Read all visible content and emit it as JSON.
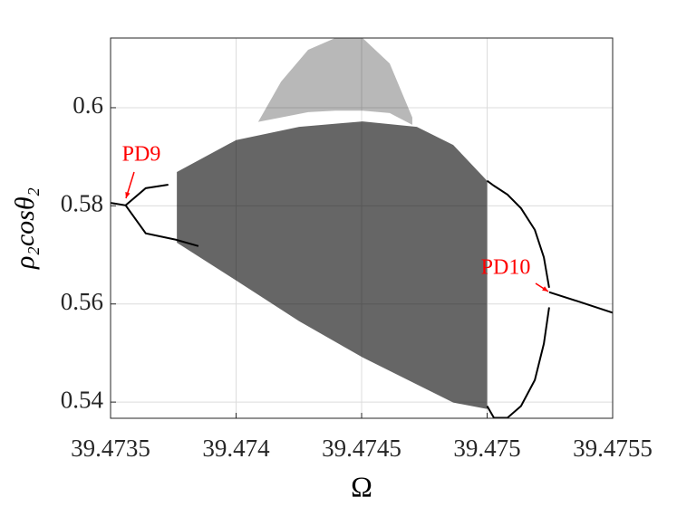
{
  "chart_data": {
    "type": "bifurcation",
    "x_label": "Ω",
    "y_label": "ρ₂cosθ₂",
    "xlim": [
      39.4735,
      39.4755
    ],
    "ylim": [
      0.5367,
      0.6142
    ],
    "xticks": [
      39.4735,
      39.474,
      39.4745,
      39.475,
      39.4755
    ],
    "yticks": [
      0.54,
      0.56,
      0.58,
      0.6
    ],
    "grid": true,
    "color": "#000000",
    "series": [
      {
        "x": [
          39.4735,
          39.47356
        ],
        "values": [
          0.5806,
          0.5801
        ]
      },
      {
        "x": [
          39.47356,
          39.47364,
          39.47373
        ],
        "values": [
          0.5801,
          0.5836,
          0.5843
        ]
      },
      {
        "x": [
          39.47356,
          39.47364,
          39.47376,
          39.47385
        ],
        "values": [
          0.5801,
          0.5744,
          0.5731,
          0.5718
        ]
      },
      {
        "x": [
          39.475,
          39.475027,
          39.475081,
          39.475135,
          39.47519,
          39.475226,
          39.475247
        ],
        "values": [
          0.5851,
          0.5841,
          0.5823,
          0.5795,
          0.5751,
          0.5695,
          0.5633
        ]
      },
      {
        "x": [
          39.475,
          39.475027,
          39.475081,
          39.475135,
          39.47519,
          39.475226,
          39.475247
        ],
        "values": [
          0.5392,
          0.5368,
          0.5368,
          0.5392,
          0.5445,
          0.5519,
          0.5593
        ]
      },
      {
        "x": [
          39.475247,
          39.47537,
          39.4755
        ],
        "values": [
          0.5624,
          0.5604,
          0.5582
        ]
      }
    ],
    "bands": [
      {
        "x": [
          39.473764,
          39.474,
          39.474251,
          39.474504,
          39.47472,
          39.474865,
          39.475
        ],
        "lower": [
          0.5725,
          0.5648,
          0.5565,
          0.5491,
          0.5436,
          0.5399,
          0.5386
        ],
        "upper": [
          0.5869,
          0.5934,
          0.5961,
          0.5972,
          0.5961,
          0.5924,
          0.5851
        ],
        "opacity": 0.6
      },
      {
        "x": [
          39.474088,
          39.474179,
          39.474287,
          39.474395,
          39.474504,
          39.474612,
          39.474702
        ],
        "lower": [
          0.5971,
          0.598,
          0.5991,
          0.5994,
          0.5994,
          0.5989,
          0.5965
        ],
        "upper": [
          0.5971,
          0.6053,
          0.6118,
          0.6142,
          0.6142,
          0.609,
          0.598
        ],
        "opacity": 0.28
      }
    ],
    "annotations": [
      {
        "text": "PD9",
        "color": "#ff0000"
      },
      {
        "text": "PD10",
        "color": "#ff0000"
      }
    ]
  }
}
